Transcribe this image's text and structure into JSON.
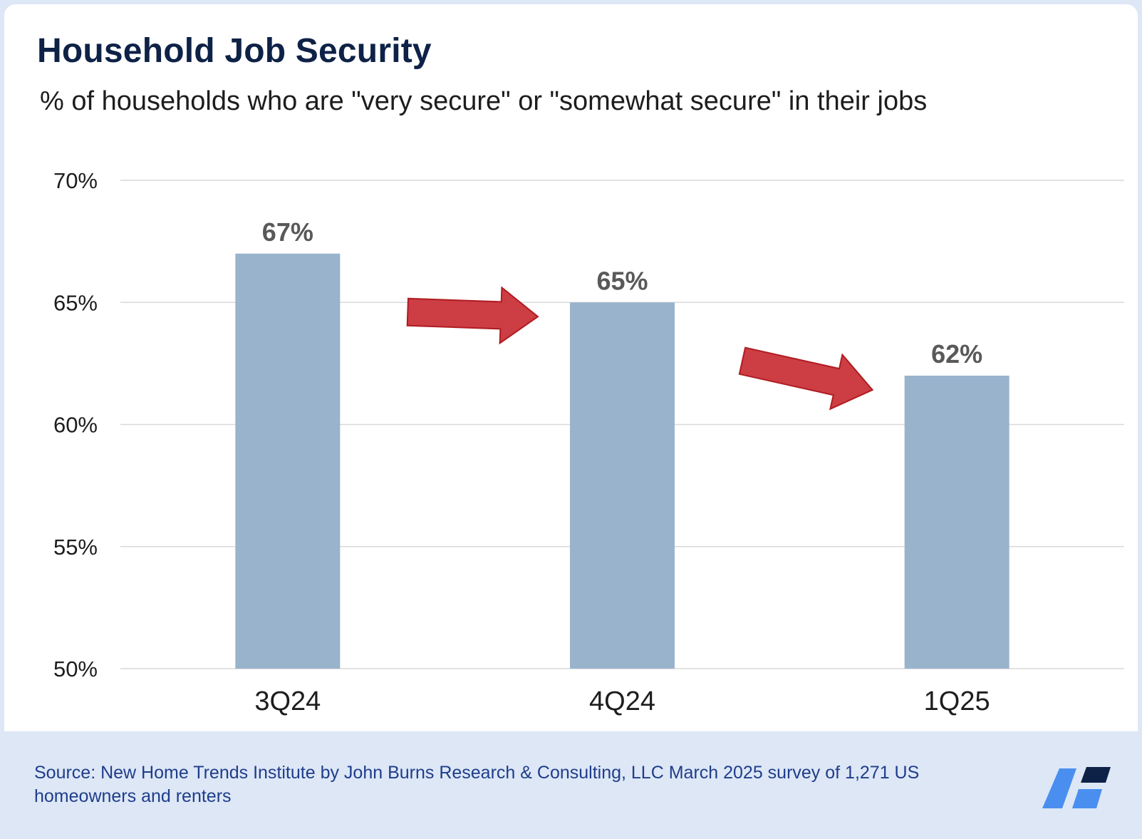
{
  "header": {
    "title": "Household Job Security",
    "subtitle": "% of households who are \"very secure\" or \"somewhat secure\" in their jobs"
  },
  "chart_data": {
    "type": "bar",
    "categories": [
      "3Q24",
      "4Q24",
      "1Q25"
    ],
    "values": [
      67,
      65,
      62
    ],
    "data_labels": [
      "67%",
      "65%",
      "62%"
    ],
    "ylim": [
      50,
      70
    ],
    "y_ticks": [
      70,
      65,
      60,
      55,
      50
    ],
    "y_tick_labels": [
      "70%",
      "65%",
      "60%",
      "55%",
      "50%"
    ],
    "grid": true,
    "legend": "none",
    "annotations": [
      "down-arrow between 3Q24 and 4Q24",
      "down-arrow between 4Q24 and 1Q25"
    ],
    "colors": {
      "bar": "#99b3cc",
      "arrow_fill": "#cc3d44",
      "arrow_stroke": "#b01c22",
      "gridline": "#d9d9d9",
      "data_label": "#595959"
    }
  },
  "footer": {
    "source": "Source: New Home Trends Institute by John Burns Research & Consulting, LLC March 2025 survey of 1,271 US homeowners and renters",
    "logo_icon": "company-logo-icon",
    "logo_colors": [
      "#4a8ff0",
      "#0e2247"
    ]
  }
}
